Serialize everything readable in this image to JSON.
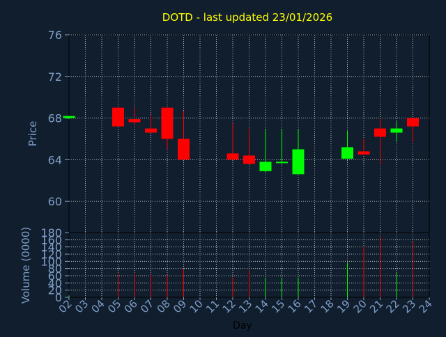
{
  "chart_data": {
    "type": "candlestick",
    "title": "DOTD - last updated 23/01/2026",
    "xlabel": "Day",
    "ylabel": "Price",
    "volume_label": "Volume (0000)",
    "x_ticks": [
      "02",
      "03",
      "04",
      "05",
      "06",
      "07",
      "08",
      "09",
      "10",
      "11",
      "12",
      "13",
      "14",
      "15",
      "16",
      "17",
      "18",
      "19",
      "20",
      "21",
      "22",
      "23",
      "24"
    ],
    "price_ticks": [
      60,
      64,
      68,
      72,
      76
    ],
    "price_ylim": [
      57,
      76
    ],
    "volume_ticks": [
      0,
      20,
      40,
      60,
      80,
      100,
      120,
      140,
      160,
      180
    ],
    "volume_ylim": [
      0,
      180
    ],
    "grid": true,
    "colors": {
      "background": "#111e2e",
      "grid": "#dddddd",
      "up": "#00ff00",
      "down": "#ff0000",
      "title": "#ffff00",
      "axis_label": "#7f9fc8"
    },
    "candles": [
      {
        "day": "02",
        "open": 68.0,
        "high": 68.2,
        "low": 67.9,
        "close": 68.2,
        "volume": 5
      },
      {
        "day": "05",
        "open": 69.0,
        "high": 69.0,
        "low": 67.2,
        "close": 67.2,
        "volume": 65
      },
      {
        "day": "06",
        "open": 67.9,
        "high": 69.0,
        "low": 67.3,
        "close": 67.6,
        "volume": 65
      },
      {
        "day": "07",
        "open": 67.0,
        "high": 68.3,
        "low": 66.6,
        "close": 66.6,
        "volume": 62
      },
      {
        "day": "08",
        "open": 69.0,
        "high": 69.0,
        "low": 65.0,
        "close": 66.0,
        "volume": 62
      },
      {
        "day": "09",
        "open": 66.0,
        "high": 68.7,
        "low": 64.0,
        "close": 64.0,
        "volume": 78
      },
      {
        "day": "12",
        "open": 64.6,
        "high": 67.5,
        "low": 64.0,
        "close": 64.0,
        "volume": 55
      },
      {
        "day": "13",
        "open": 64.4,
        "high": 67.0,
        "low": 63.6,
        "close": 63.6,
        "volume": 75
      },
      {
        "day": "14",
        "open": 62.9,
        "high": 66.9,
        "low": 62.8,
        "close": 63.8,
        "volume": 55
      },
      {
        "day": "15",
        "open": 63.7,
        "high": 66.9,
        "low": 63.7,
        "close": 63.8,
        "volume": 55
      },
      {
        "day": "16",
        "open": 62.6,
        "high": 66.9,
        "low": 62.6,
        "close": 65.0,
        "volume": 55
      },
      {
        "day": "19",
        "open": 64.1,
        "high": 66.8,
        "low": 64.0,
        "close": 65.2,
        "volume": 95
      },
      {
        "day": "20",
        "open": 64.8,
        "high": 66.0,
        "low": 64.5,
        "close": 64.5,
        "volume": 140
      },
      {
        "day": "21",
        "open": 67.0,
        "high": 68.0,
        "low": 63.5,
        "close": 66.2,
        "volume": 170
      },
      {
        "day": "22",
        "open": 66.6,
        "high": 67.7,
        "low": 65.8,
        "close": 67.0,
        "volume": 68
      },
      {
        "day": "23",
        "open": 68.0,
        "high": 68.0,
        "low": 65.7,
        "close": 67.2,
        "volume": 155
      }
    ]
  }
}
